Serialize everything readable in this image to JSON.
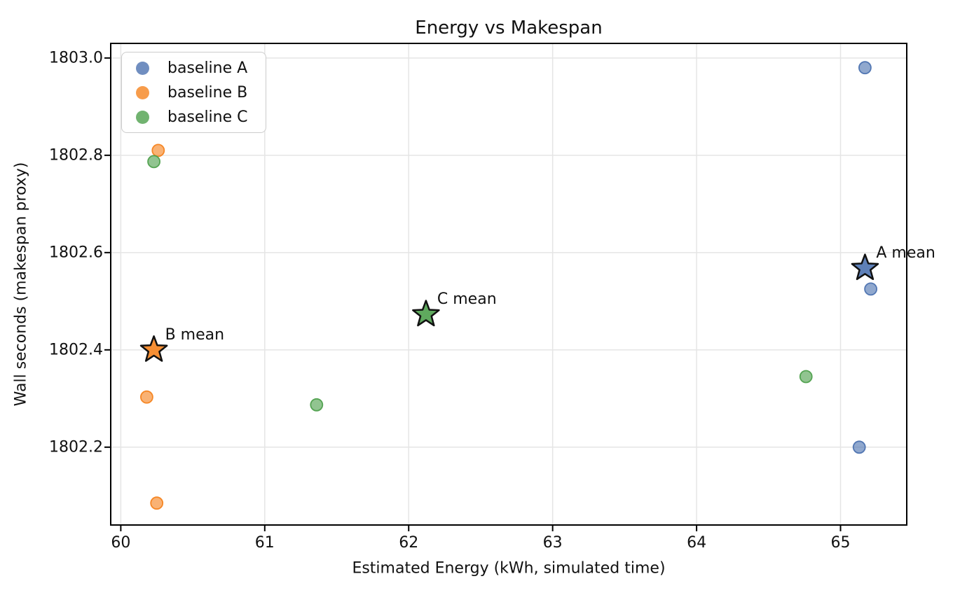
{
  "title": "Energy vs Makespan",
  "xlabel": "Estimated Energy (kWh, simulated time)",
  "ylabel": "Wall seconds (makespan proxy)",
  "legend": {
    "position": "upper left",
    "items": [
      {
        "label": "baseline A",
        "color": "#4c72b0"
      },
      {
        "label": "baseline B",
        "color": "#f5831e"
      },
      {
        "label": "baseline C",
        "color": "#4ea04c"
      }
    ]
  },
  "chart_data": {
    "type": "scatter",
    "title": "Energy vs Makespan",
    "xlabel": "Estimated Energy (kWh, simulated time)",
    "ylabel": "Wall seconds (makespan proxy)",
    "xlim": [
      59.93,
      65.46
    ],
    "ylim": [
      1802.04,
      1803.03
    ],
    "x_ticks": [
      60,
      61,
      62,
      63,
      64,
      65
    ],
    "x_tick_labels": [
      "60",
      "61",
      "62",
      "63",
      "64",
      "65"
    ],
    "y_ticks": [
      1802.2,
      1802.4,
      1802.6,
      1802.8,
      1803.0
    ],
    "y_tick_labels": [
      "1802.2",
      "1802.4",
      "1802.6",
      "1802.8",
      "1803.0"
    ],
    "grid": true,
    "legend_position": "upper left",
    "series": [
      {
        "name": "baseline A",
        "color": "#4c72b0",
        "points": [
          [
            65.17,
            1802.98
          ],
          [
            65.21,
            1802.525
          ],
          [
            65.13,
            1802.2
          ]
        ]
      },
      {
        "name": "baseline B",
        "color": "#f5831e",
        "points": [
          [
            60.26,
            1802.81
          ],
          [
            60.18,
            1802.303
          ],
          [
            60.25,
            1802.085
          ]
        ]
      },
      {
        "name": "baseline C",
        "color": "#4ea04c",
        "points": [
          [
            60.23,
            1802.787
          ],
          [
            61.36,
            1802.287
          ],
          [
            64.76,
            1802.345
          ]
        ]
      }
    ],
    "means": [
      {
        "name": "A mean",
        "series": "baseline A",
        "x": 65.17,
        "y": 1802.568,
        "color": "#4c72b0"
      },
      {
        "name": "B mean",
        "series": "baseline B",
        "x": 60.23,
        "y": 1802.4,
        "color": "#f5831e"
      },
      {
        "name": "C mean",
        "series": "baseline C",
        "x": 62.12,
        "y": 1802.473,
        "color": "#4ea04c"
      }
    ]
  }
}
